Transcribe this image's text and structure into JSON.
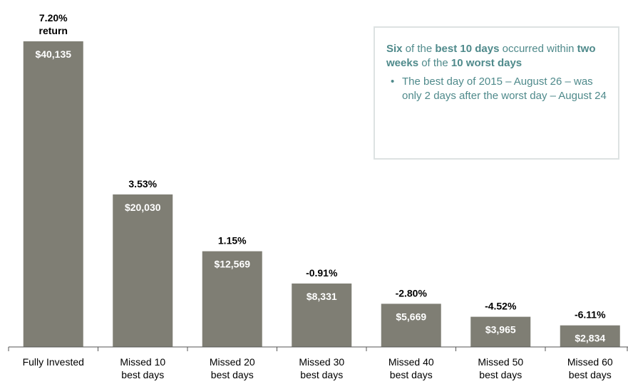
{
  "chart_data": {
    "type": "bar",
    "categories": [
      [
        "Fully Invested"
      ],
      [
        "Missed 10",
        "best days"
      ],
      [
        "Missed 20",
        "best days"
      ],
      [
        "Missed 30",
        "best days"
      ],
      [
        "Missed 40",
        "best days"
      ],
      [
        "Missed 50",
        "best days"
      ],
      [
        "Missed 60",
        "best days"
      ]
    ],
    "values": [
      40135,
      20030,
      12569,
      8331,
      5669,
      3965,
      2834
    ],
    "value_labels": [
      "$40,135",
      "$20,030",
      "$12,569",
      "$8,331",
      "$5,669",
      "$3,965",
      "$2,834"
    ],
    "return_labels": [
      [
        "7.20%",
        "return"
      ],
      [
        "3.53%"
      ],
      [
        "1.15%"
      ],
      [
        "-0.91%"
      ],
      [
        "-2.80%"
      ],
      [
        "-4.52%"
      ],
      [
        "-6.11%"
      ]
    ],
    "color": "#7f7e74",
    "ylim": [
      0,
      45000
    ],
    "callout": {
      "heading": [
        {
          "text": "Six",
          "bold": true
        },
        {
          "text": " of the ",
          "bold": false
        },
        {
          "text": "best 10 days",
          "bold": true
        },
        {
          "text": " occurred within ",
          "bold": false
        },
        {
          "text": "two weeks",
          "bold": true
        },
        {
          "text": " of the ",
          "bold": false
        },
        {
          "text": "10 worst days",
          "bold": true
        }
      ],
      "bullet": "The best day of 2015 – August 26 – was only 2 days after the worst day – August 24"
    }
  }
}
